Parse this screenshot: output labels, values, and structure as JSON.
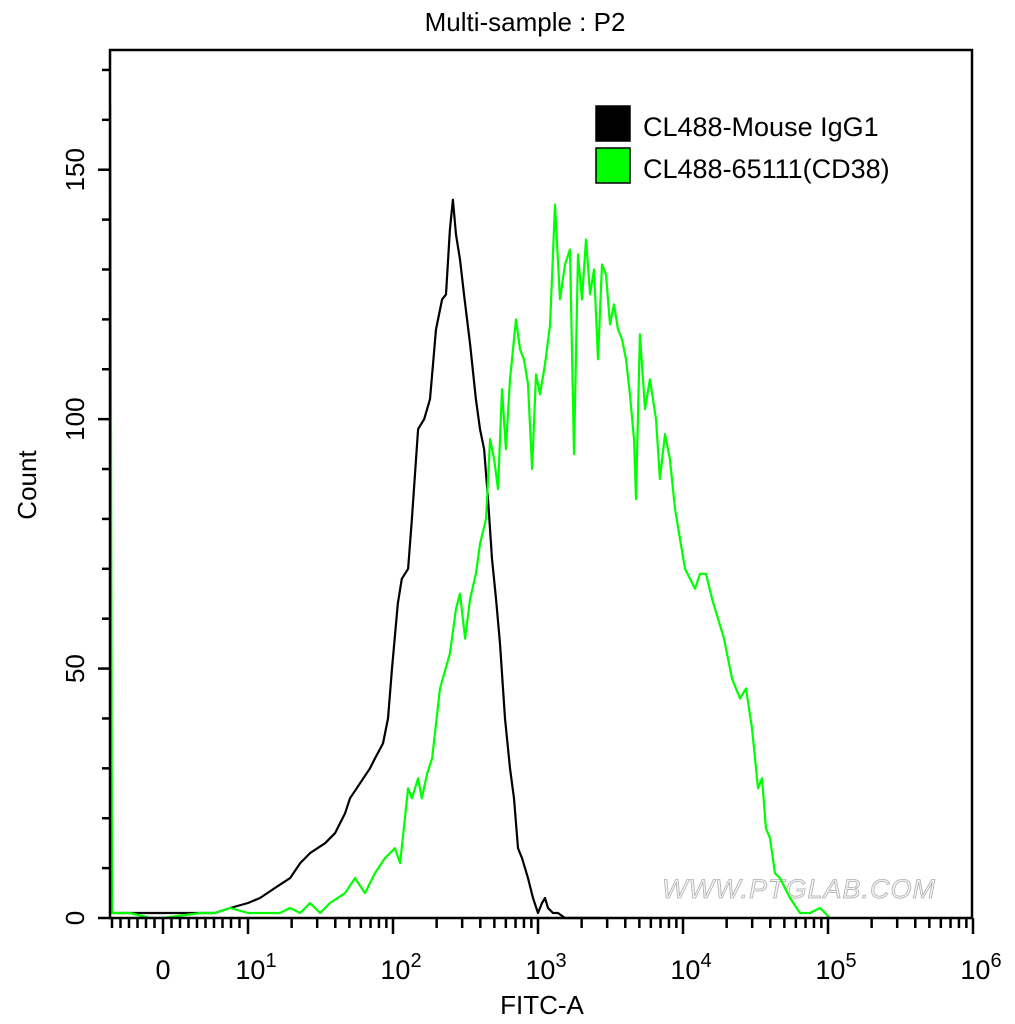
{
  "chart_data": {
    "type": "line",
    "subtype": "histogram",
    "title": "Multi-sample : P2",
    "xlabel": "FITC-A",
    "ylabel": "Count",
    "x_scale": "biexponential",
    "xlim": [
      -6.2,
      1000000
    ],
    "ylim": [
      0,
      174
    ],
    "grid": false,
    "legend_placement": "top-right",
    "watermark": "WWW.PTGLAB.COM",
    "y_ticks": [
      0,
      50,
      100,
      150
    ],
    "y_tick_labels": [
      "0",
      "50",
      "100",
      "150"
    ],
    "y_minor_step": 10,
    "x_ticks": [
      0,
      10,
      100,
      1000,
      10000,
      100000,
      1000000
    ],
    "x_tick_labels": [
      "0",
      "10^1",
      "10^2",
      "10^3",
      "10^4",
      "10^5",
      "10^6"
    ],
    "series": [
      {
        "name": "CL488-Mouse IgG1",
        "color": "#000000",
        "x": [
          -6.2,
          -3.9,
          -1.5,
          0,
          2.0,
          4.4,
          6.1,
          7.9,
          10,
          12.1,
          15.3,
          19.5,
          22.9,
          26.8,
          34.0,
          39.8,
          46.7,
          50.5,
          59.2,
          69.4,
          75.1,
          85.3,
          92.4,
          98.5,
          108,
          115,
          127,
          135,
          149,
          164,
          180,
          198,
          218,
          232,
          247,
          259,
          272,
          290,
          309,
          340,
          373,
          398,
          425,
          452,
          482,
          513,
          547,
          592,
          641,
          683,
          728,
          776,
          853,
          924,
          1000,
          1066,
          1117,
          1172,
          1268,
          1374,
          1535,
          2286,
          2679
        ],
        "y": [
          1,
          1,
          1,
          1,
          1,
          1,
          1,
          2,
          3,
          4,
          6,
          8,
          11,
          13,
          15,
          17,
          21,
          24,
          27,
          30,
          32,
          35,
          40,
          50,
          63,
          68,
          70,
          80,
          98,
          100,
          104,
          118,
          124,
          125,
          138,
          144,
          137,
          132,
          125,
          115,
          104,
          98,
          94,
          84,
          72,
          64,
          55,
          40,
          30,
          24,
          14,
          12,
          8,
          4,
          1,
          3,
          4,
          2,
          1,
          1,
          0,
          0,
          0
        ]
      },
      {
        "name": "CL488-65111(CD38)",
        "color": "#00ff00",
        "x": [
          -6.2,
          -6.0,
          -5.9,
          -5.1,
          -3.9,
          -1.5,
          0,
          4.4,
          6.1,
          7.9,
          10,
          12.1,
          14.2,
          16.6,
          19.5,
          22.9,
          26.8,
          31.4,
          36.8,
          46.7,
          54.7,
          64.1,
          75.1,
          88.1,
          103,
          112,
          127,
          135,
          149,
          158,
          172,
          186,
          211,
          247,
          272,
          290,
          314,
          340,
          373,
          398,
          438,
          467,
          498,
          530,
          565,
          601,
          641,
          705,
          751,
          800,
          853,
          910,
          969,
          1032,
          1117,
          1211,
          1310,
          1419,
          1535,
          1662,
          1771,
          1888,
          2011,
          2143,
          2286,
          2432,
          2594,
          2761,
          2944,
          3139,
          3342,
          3565,
          3795,
          4046,
          4306,
          4592,
          4742,
          5047,
          5470,
          5916,
          6516,
          6934,
          7516,
          8128,
          8810,
          9530,
          10320,
          11170,
          12100,
          13090,
          14420,
          15850,
          17420,
          19190,
          21780,
          24720,
          27180,
          29920,
          32890,
          35080,
          37330,
          39810,
          43050,
          46670,
          54700,
          64120,
          75130,
          88110,
          103200
        ],
        "y": [
          163,
          1,
          1,
          1,
          1,
          0,
          0,
          1,
          1,
          2,
          1,
          1,
          1,
          1,
          2,
          1,
          3,
          1,
          3,
          5,
          8,
          5,
          9,
          12,
          14,
          11,
          26,
          24,
          28,
          24,
          29,
          32,
          46,
          53,
          62,
          65,
          56,
          64,
          69,
          75,
          80,
          96,
          92,
          86,
          106,
          94,
          108,
          120,
          114,
          112,
          107,
          90,
          109,
          105,
          111,
          119,
          143,
          124,
          131,
          134,
          93,
          133,
          124,
          136,
          125,
          130,
          112,
          131,
          129,
          119,
          123,
          118,
          116,
          112,
          105,
          96,
          84,
          117,
          102,
          108,
          100,
          88,
          97,
          92,
          82,
          76,
          70,
          68,
          66,
          69,
          69,
          64,
          60,
          56,
          48,
          44,
          46,
          38,
          26,
          28,
          18,
          16,
          9,
          8,
          4,
          1,
          1,
          2,
          0
        ]
      }
    ]
  }
}
